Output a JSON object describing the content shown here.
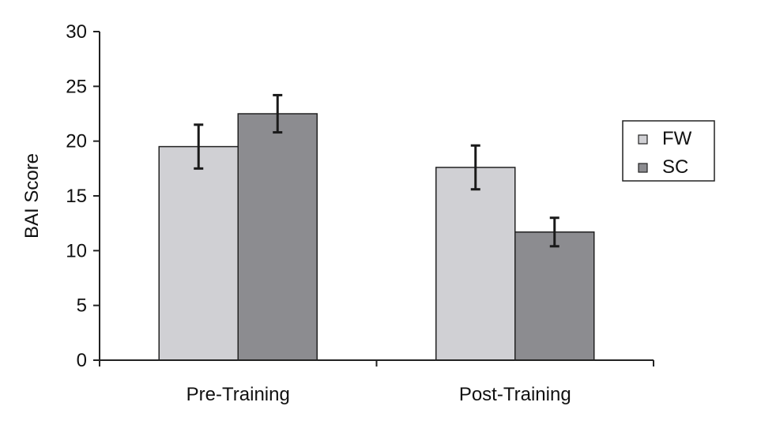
{
  "chart_data": {
    "type": "bar",
    "title": "",
    "xlabel": "",
    "ylabel": "BAI Score",
    "ylim": [
      0,
      30
    ],
    "yticks": [
      0,
      5,
      10,
      15,
      20,
      25,
      30
    ],
    "categories": [
      "Pre-Training",
      "Post-Training"
    ],
    "series": [
      {
        "name": "FW",
        "values": [
          19.5,
          17.6
        ],
        "errors": [
          2.0,
          2.0
        ],
        "color": "#d0d0d4"
      },
      {
        "name": "SC",
        "values": [
          22.5,
          11.7
        ],
        "errors": [
          1.7,
          1.3
        ],
        "color": "#8c8c90"
      }
    ],
    "grid": false,
    "legend": {
      "position": "right"
    },
    "error_bars": true
  }
}
